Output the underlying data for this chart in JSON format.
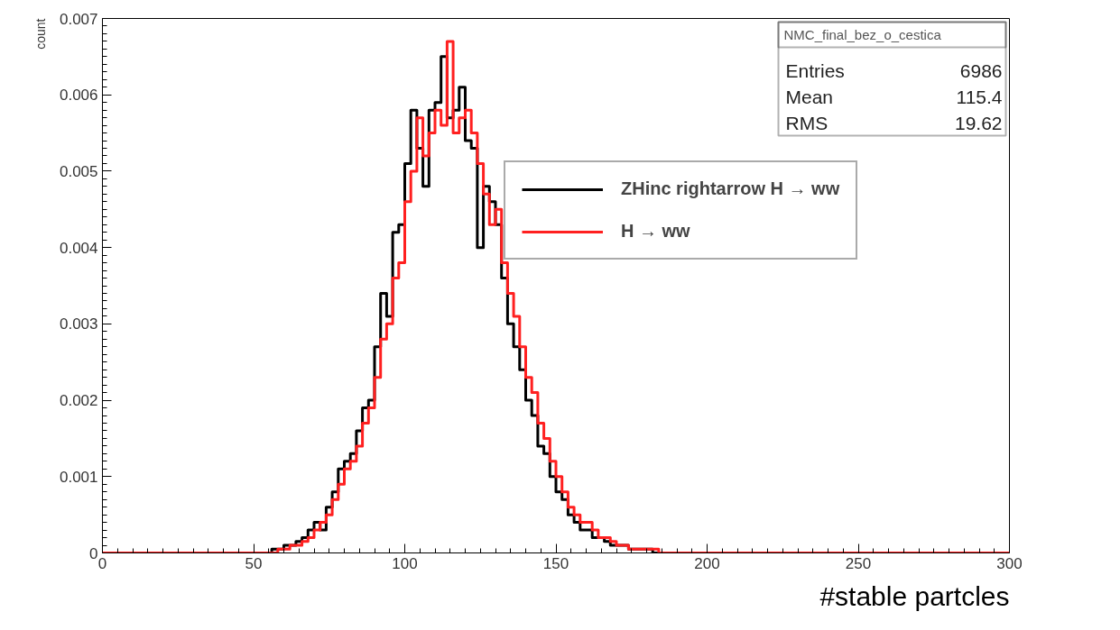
{
  "chart_data": {
    "type": "histogram",
    "xlabel": "#stable partcles",
    "ylabel": "count",
    "bins": [
      0,
      50,
      52,
      54,
      56,
      58,
      60,
      62,
      64,
      66,
      68,
      70,
      72,
      74,
      76,
      78,
      80,
      82,
      84,
      86,
      88,
      90,
      92,
      94,
      96,
      98,
      100,
      102,
      104,
      106,
      108,
      110,
      112,
      114,
      116,
      118,
      120,
      122,
      124,
      126,
      128,
      130,
      132,
      134,
      136,
      138,
      140,
      142,
      144,
      146,
      148,
      150,
      152,
      154,
      156,
      158,
      160,
      162,
      164,
      166,
      168,
      170,
      172,
      174,
      176,
      178,
      180,
      182,
      184,
      186,
      188,
      190,
      192,
      194,
      196,
      198,
      200,
      300
    ],
    "series": [
      {
        "name": "ZHinc rightarrow H → ww",
        "color": "#000000",
        "values": [
          0,
          0,
          0,
          0,
          5e-05,
          5e-05,
          0.0001,
          0.0001,
          0.00015,
          0.0002,
          0.0003,
          0.0004,
          0.0003,
          0.0006,
          0.0008,
          0.0011,
          0.0012,
          0.0013,
          0.0016,
          0.0019,
          0.002,
          0.0027,
          0.0034,
          0.0031,
          0.0042,
          0.0043,
          0.0051,
          0.0058,
          0.0053,
          0.0048,
          0.0058,
          0.0059,
          0.0065,
          0.0057,
          0.0058,
          0.0061,
          0.0054,
          0.0053,
          0.004,
          0.0048,
          0.0046,
          0.0043,
          0.0036,
          0.003,
          0.0027,
          0.0024,
          0.002,
          0.0018,
          0.0014,
          0.0013,
          0.001,
          0.0008,
          0.0007,
          0.0005,
          0.0004,
          0.0003,
          0.0003,
          0.0002,
          0.0002,
          0.00015,
          0.0001,
          0.0001,
          0.0001,
          5e-05,
          5e-05,
          5e-05,
          5e-05,
          0,
          0,
          0,
          0,
          0,
          0,
          0,
          0,
          0,
          0
        ]
      },
      {
        "name": "H → ww",
        "color": "#ff2020",
        "values": [
          0,
          0,
          0,
          0,
          0,
          5e-05,
          5e-05,
          0.0001,
          0.0001,
          0.00015,
          0.0002,
          0.0003,
          0.0004,
          0.0005,
          0.0007,
          0.0009,
          0.0011,
          0.0012,
          0.0014,
          0.0017,
          0.0019,
          0.0023,
          0.0028,
          0.003,
          0.0036,
          0.0038,
          0.0046,
          0.005,
          0.0057,
          0.0052,
          0.0055,
          0.0058,
          0.0056,
          0.0067,
          0.0055,
          0.0057,
          0.0058,
          0.0055,
          0.0051,
          0.0047,
          0.0043,
          0.0045,
          0.0038,
          0.0034,
          0.0031,
          0.0027,
          0.0023,
          0.0021,
          0.0017,
          0.0015,
          0.0012,
          0.001,
          0.0008,
          0.0006,
          0.0005,
          0.0004,
          0.0004,
          0.0003,
          0.0002,
          0.0002,
          0.00015,
          0.0001,
          0.0001,
          5e-05,
          5e-05,
          5e-05,
          5e-05,
          5e-05,
          0,
          0,
          0,
          0,
          0,
          0,
          0,
          0,
          0
        ]
      }
    ],
    "xlim": [
      0,
      300
    ],
    "ylim": [
      0,
      0.007
    ],
    "xticks": [
      0,
      50,
      100,
      150,
      200,
      250,
      300
    ],
    "yticks": [
      0,
      0.001,
      0.002,
      0.003,
      0.004,
      0.005,
      0.006,
      0.007
    ],
    "grid": false,
    "legend": "top right",
    "annotations": [
      "NMC_final_bez_o_cestica",
      "Entries",
      "6986",
      "Mean",
      "115.4",
      "RMS",
      "19.62"
    ]
  }
}
